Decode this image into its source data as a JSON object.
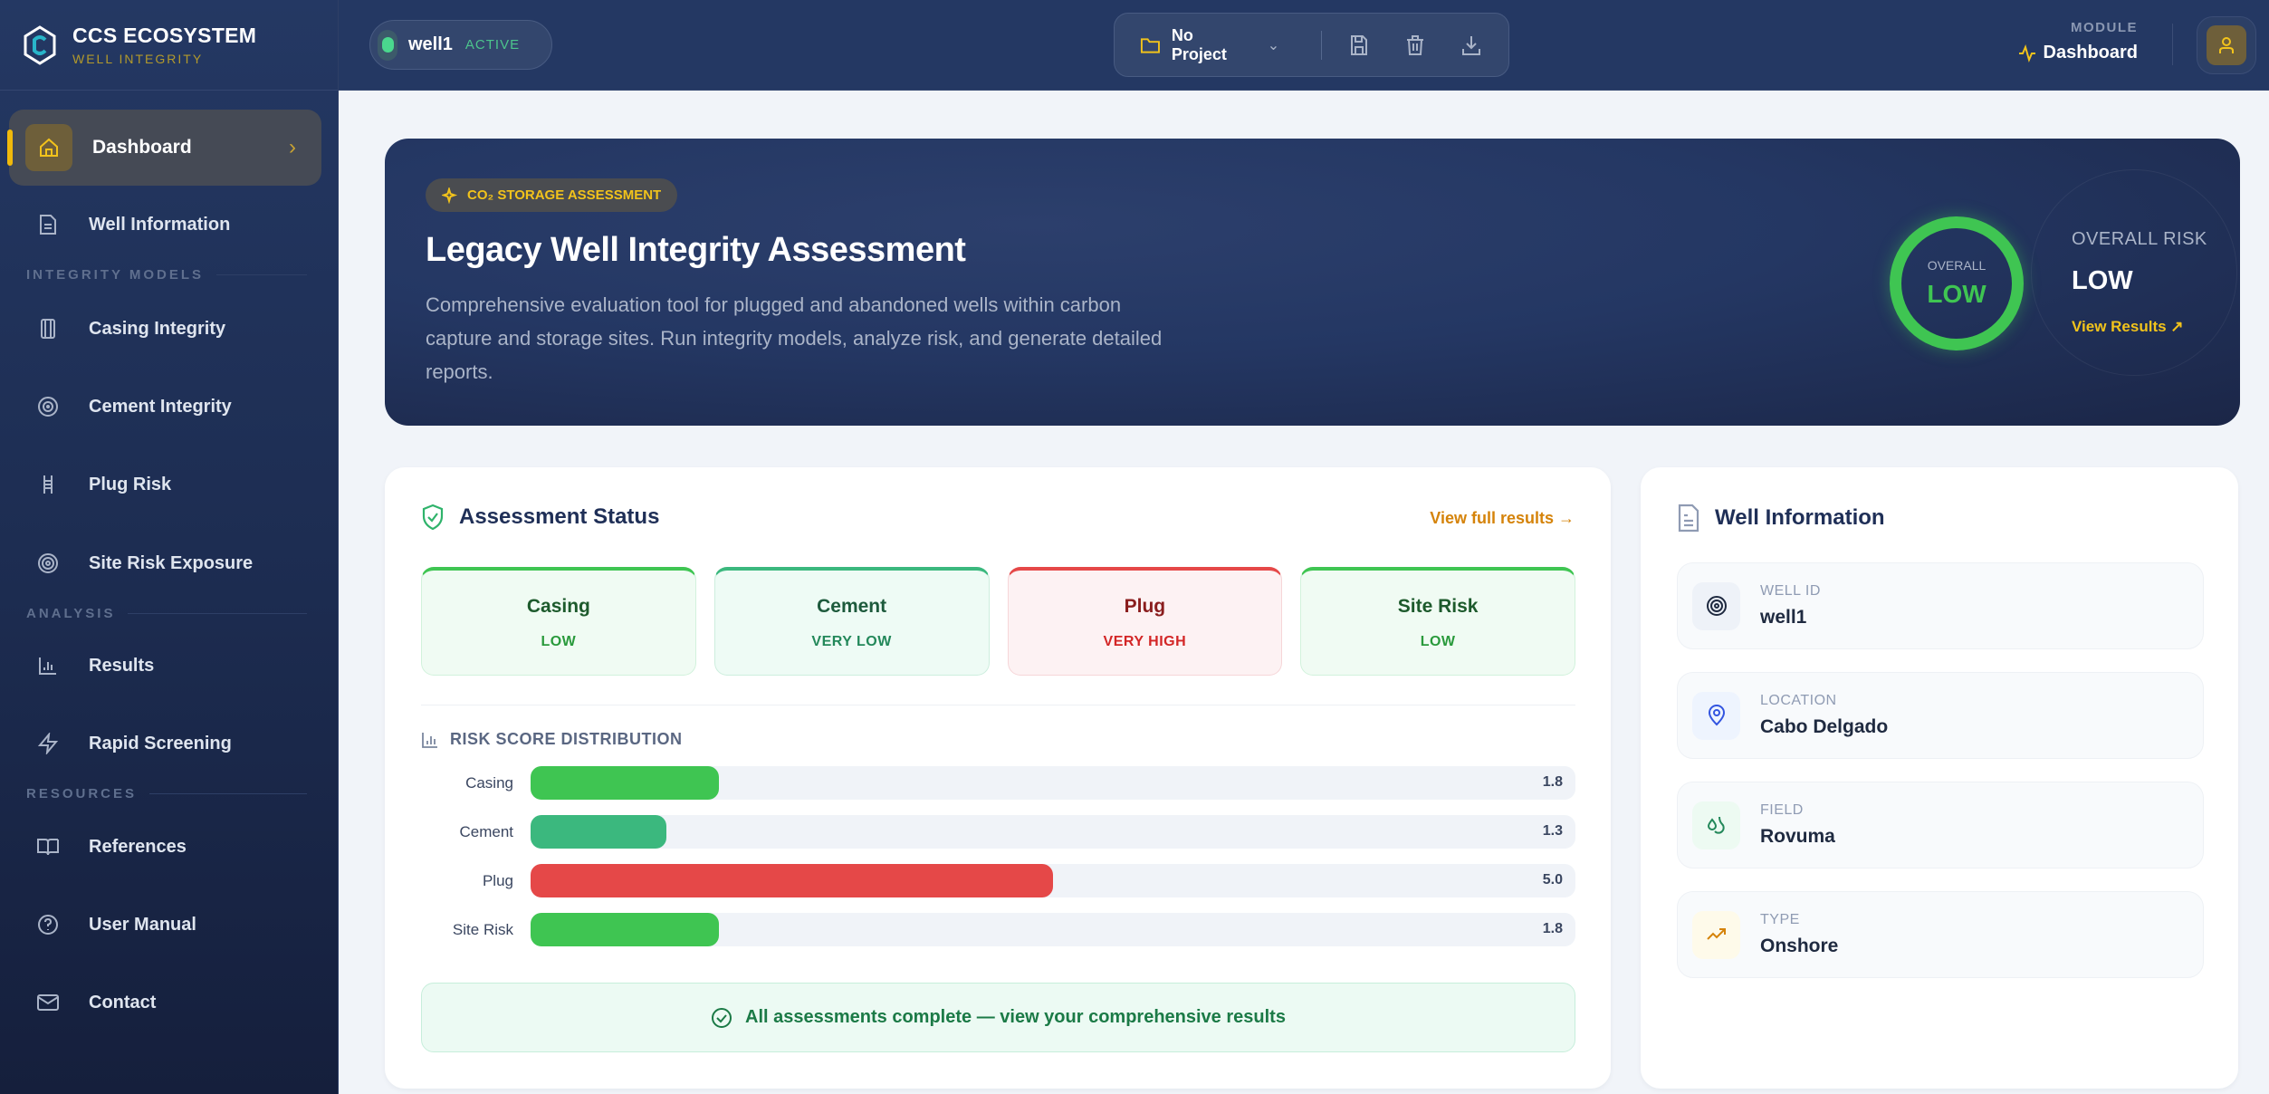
{
  "brand": {
    "title": "CCS ECOSYSTEM",
    "subtitle": "WELL INTEGRITY"
  },
  "sidebar": {
    "active": {
      "label": "Dashboard"
    },
    "items": [
      {
        "label": "Well Information",
        "icon": "document-icon"
      },
      {
        "section": "INTEGRITY MODELS"
      },
      {
        "label": "Casing Integrity",
        "icon": "casing-icon"
      },
      {
        "label": "Cement Integrity",
        "icon": "target-icon"
      },
      {
        "label": "Plug Risk",
        "icon": "plug-icon"
      },
      {
        "label": "Site Risk Exposure",
        "icon": "radar-icon"
      },
      {
        "section": "ANALYSIS"
      },
      {
        "label": "Results",
        "icon": "bar-chart-icon"
      },
      {
        "label": "Rapid Screening",
        "icon": "lightning-icon"
      },
      {
        "section": "RESOURCES"
      },
      {
        "label": "References",
        "icon": "book-icon"
      },
      {
        "label": "User Manual",
        "icon": "help-icon"
      },
      {
        "label": "Contact",
        "icon": "mail-icon"
      }
    ]
  },
  "header": {
    "well": {
      "name": "well1",
      "status": "ACTIVE"
    },
    "project": {
      "name": "No Project"
    },
    "module": {
      "label": "MODULE",
      "value": "Dashboard"
    }
  },
  "hero": {
    "badge": "CO₂ STORAGE ASSESSMENT",
    "title": "Legacy Well Integrity Assessment",
    "description": "Comprehensive evaluation tool for plugged and abandoned wells within carbon capture and storage sites. Run integrity models, analyze risk, and generate detailed reports.",
    "ring_label": "OVERALL",
    "ring_value": "LOW",
    "overall_label": "OVERALL RISK",
    "overall_value": "LOW",
    "view_results": "View Results ↗"
  },
  "status": {
    "title": "Assessment Status",
    "view_full": "View full results →",
    "tiles": [
      {
        "name": "Casing",
        "risk": "LOW"
      },
      {
        "name": "Cement",
        "risk": "VERY LOW"
      },
      {
        "name": "Plug",
        "risk": "VERY HIGH"
      },
      {
        "name": "Site Risk",
        "risk": "LOW"
      }
    ],
    "distribution_title": "RISK SCORE DISTRIBUTION",
    "complete_message": "All assessments complete — view your comprehensive results"
  },
  "chart_data": {
    "type": "bar",
    "title": "RISK SCORE DISTRIBUTION",
    "categories": [
      "Casing",
      "Cement",
      "Plug",
      "Site Risk"
    ],
    "values": [
      1.8,
      1.3,
      5.0,
      1.8
    ],
    "value_labels": [
      "1.8",
      "1.3",
      "5.0",
      "1.8"
    ],
    "xlim": [
      0,
      10
    ],
    "colors": [
      "#3fc552",
      "#3bb87e",
      "#e54848",
      "#3fc552"
    ]
  },
  "well_info": {
    "title": "Well Information",
    "fields": [
      {
        "label": "WELL ID",
        "value": "well1"
      },
      {
        "label": "LOCATION",
        "value": "Cabo Delgado"
      },
      {
        "label": "FIELD",
        "value": "Rovuma"
      },
      {
        "label": "TYPE",
        "value": "Onshore"
      }
    ]
  }
}
